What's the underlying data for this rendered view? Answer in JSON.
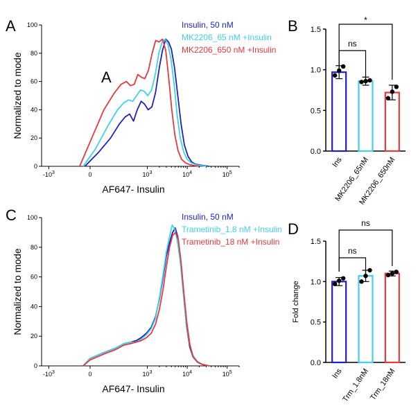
{
  "colors": {
    "ins": "#1f1fbf",
    "low": "#3fd2e6",
    "high": "#e8383d",
    "axis": "#000000"
  },
  "chart_data": [
    {
      "id": "A",
      "type": "line",
      "panel_label": "A",
      "xlabel": "AF647- Insulin",
      "ylabel": "Normalized to mode",
      "ylim": [
        0,
        100
      ],
      "yticks": [
        "0",
        "20",
        "40",
        "60",
        "80",
        "100"
      ],
      "xscale": "biexponential",
      "xlim": [
        -2000,
        200000
      ],
      "xticks": [
        {
          "v": -1000,
          "label": "-10",
          "exp": "3"
        },
        {
          "v": 0,
          "label": "0",
          "exp": ""
        },
        {
          "v": 1000,
          "label": "10",
          "exp": "3"
        },
        {
          "v": 10000,
          "label": "10",
          "exp": "4"
        },
        {
          "v": 100000,
          "label": "10",
          "exp": "5"
        }
      ],
      "annotation": "A",
      "series": [
        {
          "name": "Insulin, 50 nM",
          "color": "#1f1fbf",
          "x": [
            -30,
            50,
            120,
            200,
            280,
            360,
            450,
            560,
            700,
            850,
            1050,
            1300,
            1600,
            2000,
            2400,
            2900,
            3400,
            4000,
            4800,
            5800,
            7000,
            8500,
            10500,
            13000,
            16000,
            20000,
            26000,
            35000
          ],
          "y": [
            0,
            10,
            20,
            30,
            35,
            37,
            32,
            40,
            46,
            44,
            40,
            42,
            52,
            70,
            82,
            90,
            88,
            83,
            70,
            50,
            30,
            15,
            7,
            3,
            1.5,
            1,
            0.5,
            0
          ]
        },
        {
          "name": "MK2206_65 nM +Insulin",
          "color": "#3fd2e6",
          "x": [
            -40,
            30,
            100,
            180,
            260,
            340,
            430,
            540,
            680,
            840,
            1030,
            1280,
            1580,
            1950,
            2350,
            2800,
            3300,
            3900,
            4700,
            5600,
            6700,
            8200,
            10000,
            12500,
            16000,
            21000,
            30000
          ],
          "y": [
            0,
            12,
            28,
            40,
            45,
            47,
            46,
            50,
            54,
            53,
            50,
            54,
            65,
            80,
            88,
            90,
            86,
            76,
            58,
            36,
            20,
            10,
            5,
            2.5,
            1.2,
            0.5,
            0
          ]
        },
        {
          "name": "MK2206_650 nM +Insulin",
          "color": "#e8383d",
          "x": [
            -60,
            10,
            80,
            150,
            220,
            300,
            380,
            470,
            580,
            710,
            870,
            1070,
            1320,
            1620,
            1980,
            2400,
            2900,
            3450,
            4100,
            4900,
            5900,
            7200,
            9000,
            11500,
            15000,
            20000
          ],
          "y": [
            0,
            20,
            40,
            52,
            58,
            60,
            57,
            58,
            65,
            63,
            62,
            68,
            80,
            89,
            88,
            90,
            82,
            62,
            40,
            22,
            11,
            5,
            2.5,
            1.2,
            0.5,
            0
          ]
        }
      ]
    },
    {
      "id": "B",
      "type": "bar",
      "panel_label": "B",
      "categories": [
        "Ins",
        "MK2206_65nM",
        "MK2206_650nM"
      ],
      "values": [
        0.97,
        0.86,
        0.72
      ],
      "errors": [
        0.08,
        0.05,
        0.09
      ],
      "points": [
        [
          0.93,
          0.99,
          1.04
        ],
        [
          0.85,
          0.86,
          0.87
        ],
        [
          0.65,
          0.73,
          0.79
        ]
      ],
      "colors": [
        "#1f1fbf",
        "#3fd2e6",
        "#e8383d"
      ],
      "ylim": [
        0,
        1.5
      ],
      "yticks": [
        "0.0",
        "0.5",
        "1.0",
        "1.5"
      ],
      "ylabel": "",
      "significance": [
        {
          "from": 0,
          "to": 1,
          "label": "ns"
        },
        {
          "from": 0,
          "to": 2,
          "label": "*"
        }
      ]
    },
    {
      "id": "C",
      "type": "line",
      "panel_label": "C",
      "xlabel": "AF647- Insulin",
      "ylabel": "Normalized to mode",
      "ylim": [
        0,
        100
      ],
      "yticks": [
        "0",
        "20",
        "40",
        "60",
        "80",
        "100"
      ],
      "xscale": "biexponential",
      "xlim": [
        -2000,
        200000
      ],
      "xticks": [
        {
          "v": -1000,
          "label": "-10",
          "exp": "3"
        },
        {
          "v": 0,
          "label": "0",
          "exp": ""
        },
        {
          "v": 1000,
          "label": "10",
          "exp": "3"
        },
        {
          "v": 10000,
          "label": "10",
          "exp": "4"
        },
        {
          "v": 100000,
          "label": "10",
          "exp": "5"
        }
      ],
      "series": [
        {
          "name": "Insulin, 50 nM",
          "color": "#1f1fbf",
          "x": [
            -40,
            0,
            80,
            160,
            260,
            380,
            520,
            700,
            950,
            1250,
            1600,
            2000,
            2500,
            3000,
            3600,
            4300,
            5000,
            5800,
            6800,
            8000,
            9500,
            11500,
            14000,
            18000,
            24000,
            35000
          ],
          "y": [
            0,
            5,
            9,
            12,
            15,
            16,
            17,
            19,
            22,
            26,
            33,
            45,
            60,
            74,
            83,
            90,
            93,
            87,
            72,
            50,
            28,
            13,
            6,
            2.5,
            1,
            0
          ]
        },
        {
          "name": "Trametinib_1.8 nM +Insulin",
          "color": "#3fd2e6",
          "x": [
            -40,
            0,
            80,
            160,
            260,
            380,
            520,
            700,
            950,
            1250,
            1600,
            2000,
            2500,
            3000,
            3600,
            4200,
            4900,
            5700,
            6700,
            7900,
            9400,
            11400,
            14000,
            18000,
            24000,
            35000
          ],
          "y": [
            0,
            5,
            9,
            12,
            15,
            16,
            16,
            18,
            21,
            25,
            32,
            46,
            62,
            77,
            87,
            95,
            92,
            84,
            70,
            50,
            30,
            15,
            7,
            3,
            1,
            0
          ]
        },
        {
          "name": "Trametinib_18 nM +Insulin",
          "color": "#e8383d",
          "x": [
            -40,
            0,
            80,
            160,
            260,
            380,
            520,
            700,
            950,
            1250,
            1600,
            2000,
            2500,
            3000,
            3600,
            4300,
            5100,
            6000,
            7000,
            8200,
            9700,
            11700,
            14000,
            18000,
            24000,
            35000
          ],
          "y": [
            0,
            4,
            8,
            11,
            14,
            15,
            16,
            17,
            19,
            22,
            28,
            38,
            52,
            67,
            80,
            88,
            90,
            85,
            70,
            50,
            30,
            14,
            6,
            2.5,
            1,
            0
          ]
        }
      ]
    },
    {
      "id": "D",
      "type": "bar",
      "panel_label": "D",
      "categories": [
        "Ins",
        "Trm_1.8nM",
        "Trm_18nM"
      ],
      "values": [
        1.0,
        1.07,
        1.1
      ],
      "errors": [
        0.05,
        0.07,
        0.03
      ],
      "points": [
        [
          0.97,
          1.01,
          1.04
        ],
        [
          1.0,
          1.07,
          1.14
        ],
        [
          1.08,
          1.1,
          1.12
        ]
      ],
      "colors": [
        "#1f1fbf",
        "#3fd2e6",
        "#e8383d"
      ],
      "ylim": [
        0,
        1.5
      ],
      "yticks": [
        "0.0",
        "0.5",
        "1.0",
        "1.5"
      ],
      "ylabel": "Fold change",
      "significance": [
        {
          "from": 0,
          "to": 1,
          "label": "ns"
        },
        {
          "from": 0,
          "to": 2,
          "label": "ns"
        }
      ]
    }
  ]
}
